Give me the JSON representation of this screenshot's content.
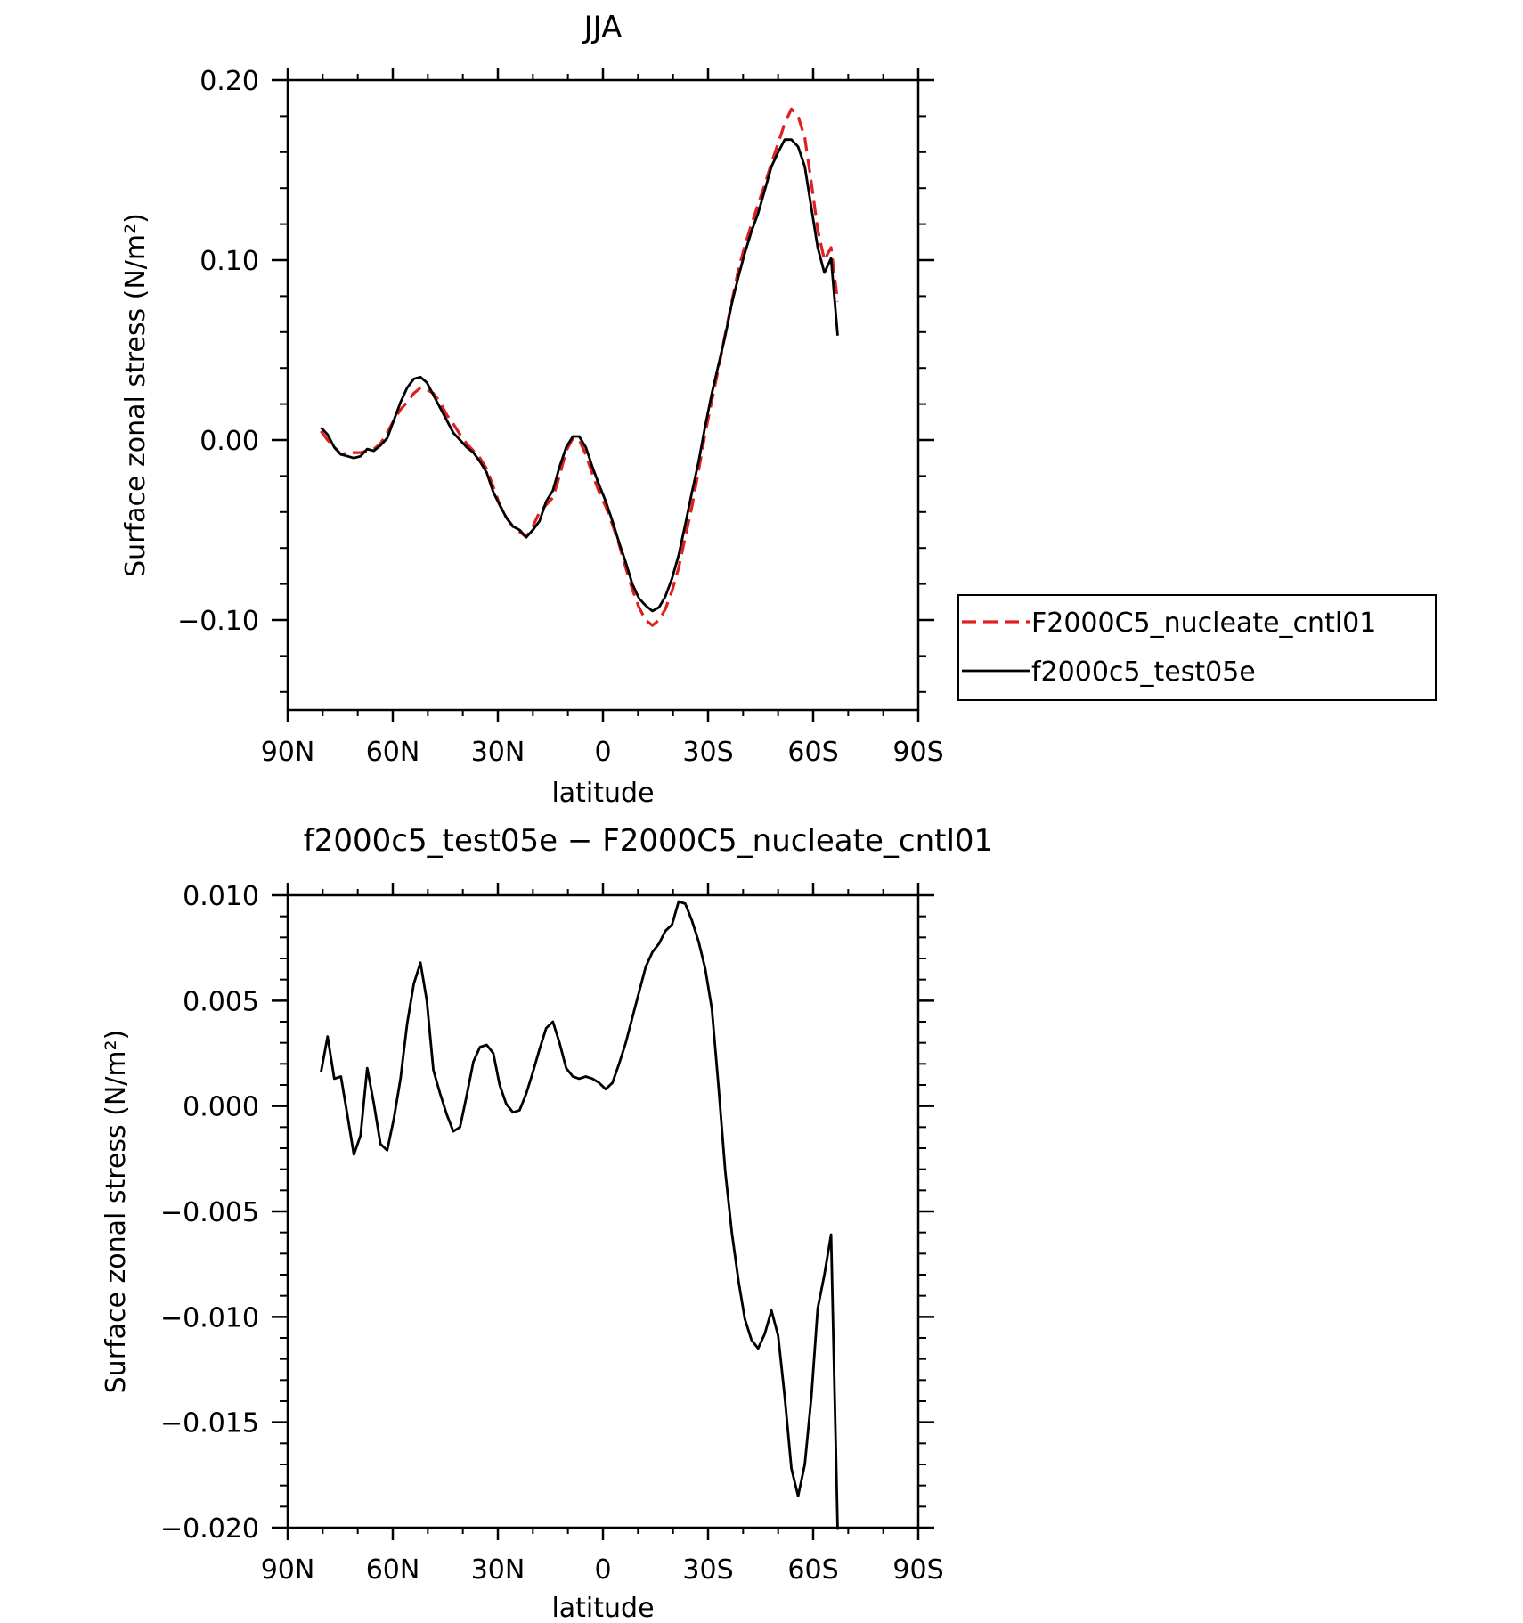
{
  "chart_data": [
    {
      "type": "line",
      "title": "JJA",
      "xlabel": "latitude",
      "ylabel": "Surface zonal stress (N/m²)",
      "xlim": [
        -90,
        90
      ],
      "ylim": [
        -0.15,
        0.2
      ],
      "x_ticks": [
        {
          "value": -90,
          "label": "90N"
        },
        {
          "value": -60,
          "label": "60N"
        },
        {
          "value": -30,
          "label": "30N"
        },
        {
          "value": 0,
          "label": "0"
        },
        {
          "value": 30,
          "label": "30S"
        },
        {
          "value": 60,
          "label": "60S"
        },
        {
          "value": 90,
          "label": "90S"
        }
      ],
      "y_ticks": [
        {
          "value": 0.2,
          "label": "0.20"
        },
        {
          "value": 0.1,
          "label": "0.10"
        },
        {
          "value": 0.0,
          "label": "0.00"
        },
        {
          "value": -0.1,
          "label": "−0.10"
        }
      ],
      "legend_position": "outside-right",
      "series": [
        {
          "name": "F2000C5_nucleate_cntl01",
          "color": "#e02020",
          "dash": "dashed",
          "points": [
            [
              -80.5,
              0.005
            ],
            [
              -78.6,
              0.0
            ],
            [
              -76.7,
              -0.004
            ],
            [
              -74.8,
              -0.008
            ],
            [
              -72.9,
              -0.007
            ],
            [
              -71.1,
              -0.007
            ],
            [
              -69.2,
              -0.007
            ],
            [
              -67.3,
              -0.006
            ],
            [
              -65.4,
              -0.005
            ],
            [
              -63.5,
              -0.002
            ],
            [
              -61.6,
              0.004
            ],
            [
              -59.7,
              0.011
            ],
            [
              -57.8,
              0.017
            ],
            [
              -55.9,
              0.021
            ],
            [
              -54.0,
              0.026
            ],
            [
              -52.1,
              0.029
            ],
            [
              -50.3,
              0.028
            ],
            [
              -48.4,
              0.026
            ],
            [
              -46.5,
              0.021
            ],
            [
              -44.6,
              0.014
            ],
            [
              -42.7,
              0.009
            ],
            [
              -40.8,
              0.003
            ],
            [
              -38.9,
              -0.002
            ],
            [
              -37.0,
              -0.006
            ],
            [
              -35.1,
              -0.01
            ],
            [
              -33.2,
              -0.016
            ],
            [
              -31.3,
              -0.026
            ],
            [
              -29.5,
              -0.036
            ],
            [
              -27.6,
              -0.043
            ],
            [
              -25.7,
              -0.048
            ],
            [
              -23.8,
              -0.051
            ],
            [
              -21.9,
              -0.054
            ],
            [
              -20.0,
              -0.048
            ],
            [
              -18.1,
              -0.04
            ],
            [
              -16.2,
              -0.036
            ],
            [
              -14.3,
              -0.032
            ],
            [
              -12.4,
              -0.02
            ],
            [
              -10.5,
              -0.006
            ],
            [
              -8.6,
              0.001
            ],
            [
              -6.8,
              0.0
            ],
            [
              -4.9,
              -0.008
            ],
            [
              -3.0,
              -0.019
            ],
            [
              -1.1,
              -0.029
            ],
            [
              0.8,
              -0.037
            ],
            [
              2.7,
              -0.047
            ],
            [
              4.6,
              -0.058
            ],
            [
              6.5,
              -0.071
            ],
            [
              8.4,
              -0.083
            ],
            [
              10.3,
              -0.093
            ],
            [
              12.2,
              -0.1
            ],
            [
              14.1,
              -0.103
            ],
            [
              16.0,
              -0.1
            ],
            [
              17.8,
              -0.094
            ],
            [
              19.7,
              -0.084
            ],
            [
              21.6,
              -0.071
            ],
            [
              23.5,
              -0.054
            ],
            [
              25.4,
              -0.037
            ],
            [
              27.3,
              -0.017
            ],
            [
              29.2,
              0.004
            ],
            [
              31.1,
              0.022
            ],
            [
              33.0,
              0.04
            ],
            [
              34.9,
              0.059
            ],
            [
              36.8,
              0.077
            ],
            [
              38.7,
              0.095
            ],
            [
              40.5,
              0.108
            ],
            [
              42.4,
              0.12
            ],
            [
              44.3,
              0.131
            ],
            [
              46.2,
              0.142
            ],
            [
              48.1,
              0.154
            ],
            [
              50.0,
              0.165
            ],
            [
              51.9,
              0.176
            ],
            [
              53.8,
              0.184
            ],
            [
              55.7,
              0.18
            ],
            [
              57.6,
              0.168
            ],
            [
              59.5,
              0.143
            ],
            [
              61.3,
              0.117
            ],
            [
              63.2,
              0.1
            ],
            [
              65.1,
              0.107
            ],
            [
              67.0,
              0.077
            ]
          ]
        },
        {
          "name": "f2000c5_test05e",
          "color": "#000000",
          "dash": "solid",
          "points": [
            [
              -80.5,
              0.007
            ],
            [
              -78.6,
              0.003
            ],
            [
              -76.7,
              -0.004
            ],
            [
              -74.8,
              -0.008
            ],
            [
              -72.9,
              -0.009
            ],
            [
              -71.1,
              -0.01
            ],
            [
              -69.2,
              -0.009
            ],
            [
              -67.3,
              -0.005
            ],
            [
              -65.4,
              -0.006
            ],
            [
              -63.5,
              -0.003
            ],
            [
              -61.6,
              0.001
            ],
            [
              -59.7,
              0.011
            ],
            [
              -57.8,
              0.021
            ],
            [
              -55.9,
              0.029
            ],
            [
              -54.0,
              0.034
            ],
            [
              -52.1,
              0.035
            ],
            [
              -50.3,
              0.032
            ],
            [
              -48.4,
              0.025
            ],
            [
              -46.5,
              0.018
            ],
            [
              -44.6,
              0.011
            ],
            [
              -42.7,
              0.004
            ],
            [
              -40.8,
              0.0
            ],
            [
              -38.9,
              -0.004
            ],
            [
              -37.0,
              -0.007
            ],
            [
              -35.1,
              -0.012
            ],
            [
              -33.2,
              -0.018
            ],
            [
              -31.3,
              -0.029
            ],
            [
              -29.5,
              -0.036
            ],
            [
              -27.6,
              -0.043
            ],
            [
              -25.7,
              -0.048
            ],
            [
              -23.8,
              -0.05
            ],
            [
              -21.9,
              -0.054
            ],
            [
              -20.0,
              -0.05
            ],
            [
              -18.1,
              -0.045
            ],
            [
              -16.2,
              -0.034
            ],
            [
              -14.3,
              -0.028
            ],
            [
              -12.4,
              -0.015
            ],
            [
              -10.5,
              -0.004
            ],
            [
              -8.6,
              0.002
            ],
            [
              -6.8,
              0.002
            ],
            [
              -4.9,
              -0.004
            ],
            [
              -3.0,
              -0.015
            ],
            [
              -1.1,
              -0.025
            ],
            [
              0.8,
              -0.034
            ],
            [
              2.7,
              -0.045
            ],
            [
              4.6,
              -0.057
            ],
            [
              6.5,
              -0.068
            ],
            [
              8.4,
              -0.08
            ],
            [
              10.3,
              -0.088
            ],
            [
              12.2,
              -0.092
            ],
            [
              14.1,
              -0.095
            ],
            [
              16.0,
              -0.093
            ],
            [
              17.8,
              -0.087
            ],
            [
              19.7,
              -0.077
            ],
            [
              21.6,
              -0.064
            ],
            [
              23.5,
              -0.047
            ],
            [
              25.4,
              -0.029
            ],
            [
              27.3,
              -0.012
            ],
            [
              29.2,
              0.008
            ],
            [
              31.1,
              0.026
            ],
            [
              33.0,
              0.042
            ],
            [
              34.9,
              0.058
            ],
            [
              36.8,
              0.076
            ],
            [
              38.7,
              0.091
            ],
            [
              40.5,
              0.104
            ],
            [
              42.4,
              0.116
            ],
            [
              44.3,
              0.126
            ],
            [
              46.2,
              0.139
            ],
            [
              48.1,
              0.152
            ],
            [
              50.0,
              0.16
            ],
            [
              51.9,
              0.167
            ],
            [
              53.8,
              0.167
            ],
            [
              55.7,
              0.163
            ],
            [
              57.6,
              0.152
            ],
            [
              59.5,
              0.129
            ],
            [
              61.3,
              0.107
            ],
            [
              63.2,
              0.093
            ],
            [
              65.1,
              0.101
            ],
            [
              67.0,
              0.058
            ]
          ]
        }
      ]
    },
    {
      "type": "line",
      "title": "f2000c5_test05e − F2000C5_nucleate_cntl01",
      "xlabel": "latitude",
      "ylabel": "Surface zonal stress (N/m²)",
      "xlim": [
        -90,
        90
      ],
      "ylim": [
        -0.02,
        0.01
      ],
      "x_ticks": [
        {
          "value": -90,
          "label": "90N"
        },
        {
          "value": -60,
          "label": "60N"
        },
        {
          "value": -30,
          "label": "30N"
        },
        {
          "value": 0,
          "label": "0"
        },
        {
          "value": 30,
          "label": "30S"
        },
        {
          "value": 60,
          "label": "60S"
        },
        {
          "value": 90,
          "label": "90S"
        }
      ],
      "y_ticks": [
        {
          "value": 0.01,
          "label": "0.010"
        },
        {
          "value": 0.005,
          "label": "0.005"
        },
        {
          "value": 0.0,
          "label": "0.000"
        },
        {
          "value": -0.005,
          "label": "−0.005"
        },
        {
          "value": -0.01,
          "label": "−0.010"
        },
        {
          "value": -0.015,
          "label": "−0.015"
        },
        {
          "value": -0.02,
          "label": "−0.020"
        }
      ],
      "series": [
        {
          "name": "",
          "color": "#000000",
          "dash": "solid",
          "points": [
            [
              -80.5,
              0.0016
            ],
            [
              -78.6,
              0.0033
            ],
            [
              -76.7,
              0.0013
            ],
            [
              -74.8,
              0.0014
            ],
            [
              -72.9,
              -0.0005
            ],
            [
              -71.1,
              -0.0023
            ],
            [
              -69.2,
              -0.0014
            ],
            [
              -67.3,
              0.0018
            ],
            [
              -65.4,
              0.0001
            ],
            [
              -63.5,
              -0.0018
            ],
            [
              -61.6,
              -0.0021
            ],
            [
              -59.7,
              -0.0006
            ],
            [
              -57.8,
              0.0013
            ],
            [
              -55.9,
              0.0039
            ],
            [
              -54.0,
              0.0058
            ],
            [
              -52.1,
              0.0068
            ],
            [
              -50.3,
              0.005
            ],
            [
              -48.4,
              0.0017
            ],
            [
              -46.5,
              0.0006
            ],
            [
              -44.6,
              -0.0004
            ],
            [
              -42.7,
              -0.0012
            ],
            [
              -40.8,
              -0.001
            ],
            [
              -38.9,
              0.0005
            ],
            [
              -37.0,
              0.0021
            ],
            [
              -35.1,
              0.0028
            ],
            [
              -33.2,
              0.0029
            ],
            [
              -31.3,
              0.0025
            ],
            [
              -29.5,
              0.001
            ],
            [
              -27.6,
              0.0001
            ],
            [
              -25.7,
              -0.0003
            ],
            [
              -23.8,
              -0.0002
            ],
            [
              -21.9,
              0.0006
            ],
            [
              -20.0,
              0.0016
            ],
            [
              -18.1,
              0.0027
            ],
            [
              -16.2,
              0.0037
            ],
            [
              -14.3,
              0.004
            ],
            [
              -12.4,
              0.003
            ],
            [
              -10.5,
              0.0018
            ],
            [
              -8.6,
              0.0014
            ],
            [
              -6.8,
              0.0013
            ],
            [
              -4.9,
              0.0014
            ],
            [
              -3.0,
              0.0013
            ],
            [
              -1.1,
              0.0011
            ],
            [
              0.8,
              0.0008
            ],
            [
              2.7,
              0.0011
            ],
            [
              4.6,
              0.002
            ],
            [
              6.5,
              0.003
            ],
            [
              8.4,
              0.0042
            ],
            [
              10.3,
              0.0054
            ],
            [
              12.2,
              0.0066
            ],
            [
              14.1,
              0.0073
            ],
            [
              16.0,
              0.0077
            ],
            [
              17.8,
              0.0083
            ],
            [
              19.7,
              0.0086
            ],
            [
              21.6,
              0.0097
            ],
            [
              23.5,
              0.0096
            ],
            [
              25.4,
              0.0088
            ],
            [
              27.3,
              0.0078
            ],
            [
              29.2,
              0.0065
            ],
            [
              31.1,
              0.0046
            ],
            [
              33.0,
              0.0009
            ],
            [
              34.9,
              -0.0031
            ],
            [
              36.8,
              -0.006
            ],
            [
              38.7,
              -0.0083
            ],
            [
              40.5,
              -0.0101
            ],
            [
              42.4,
              -0.0111
            ],
            [
              44.3,
              -0.0115
            ],
            [
              46.2,
              -0.0108
            ],
            [
              48.1,
              -0.0097
            ],
            [
              50.0,
              -0.0109
            ],
            [
              51.9,
              -0.0138
            ],
            [
              53.8,
              -0.0172
            ],
            [
              55.7,
              -0.0185
            ],
            [
              57.6,
              -0.017
            ],
            [
              59.5,
              -0.0138
            ],
            [
              61.3,
              -0.0096
            ],
            [
              63.2,
              -0.008
            ],
            [
              65.1,
              -0.0061
            ],
            [
              67.0,
              -0.0201
            ]
          ]
        }
      ]
    }
  ]
}
